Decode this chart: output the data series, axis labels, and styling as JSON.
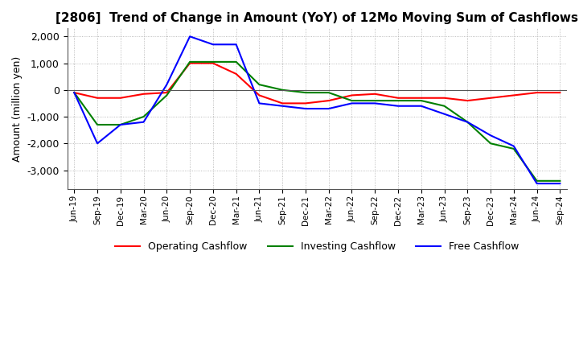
{
  "title": "[2806]  Trend of Change in Amount (YoY) of 12Mo Moving Sum of Cashflows",
  "ylabel": "Amount (million yen)",
  "ylim": [
    -3700,
    2300
  ],
  "yticks": [
    -3000,
    -2000,
    -1000,
    0,
    1000,
    2000
  ],
  "categories": [
    "Jun-19",
    "Sep-19",
    "Dec-19",
    "Mar-20",
    "Jun-20",
    "Sep-20",
    "Dec-20",
    "Mar-21",
    "Jun-21",
    "Sep-21",
    "Dec-21",
    "Mar-22",
    "Jun-22",
    "Sep-22",
    "Dec-22",
    "Mar-23",
    "Jun-23",
    "Sep-23",
    "Dec-23",
    "Mar-24",
    "Jun-24",
    "Sep-24"
  ],
  "operating": [
    -100,
    -300,
    -300,
    -150,
    -100,
    1000,
    1000,
    600,
    -200,
    -500,
    -500,
    -400,
    -200,
    -150,
    -300,
    -300,
    -300,
    -400,
    -300,
    -200,
    -100,
    -100
  ],
  "investing": [
    -100,
    -1300,
    -1300,
    -1000,
    -200,
    1050,
    1050,
    1050,
    200,
    0,
    -100,
    -100,
    -400,
    -400,
    -400,
    -400,
    -600,
    -1200,
    -2000,
    -2200,
    -3400,
    -3400
  ],
  "free": [
    -100,
    -2000,
    -1300,
    -1200,
    200,
    2000,
    1700,
    1700,
    -500,
    -600,
    -700,
    -700,
    -500,
    -500,
    -600,
    -600,
    -900,
    -1200,
    -1700,
    -2100,
    -3500,
    -3500
  ],
  "operating_color": "#ff0000",
  "investing_color": "#008000",
  "free_color": "#0000ff",
  "background_color": "#ffffff",
  "grid_color": "#aaaaaa",
  "title_fontsize": 11,
  "legend_labels": [
    "Operating Cashflow",
    "Investing Cashflow",
    "Free Cashflow"
  ]
}
